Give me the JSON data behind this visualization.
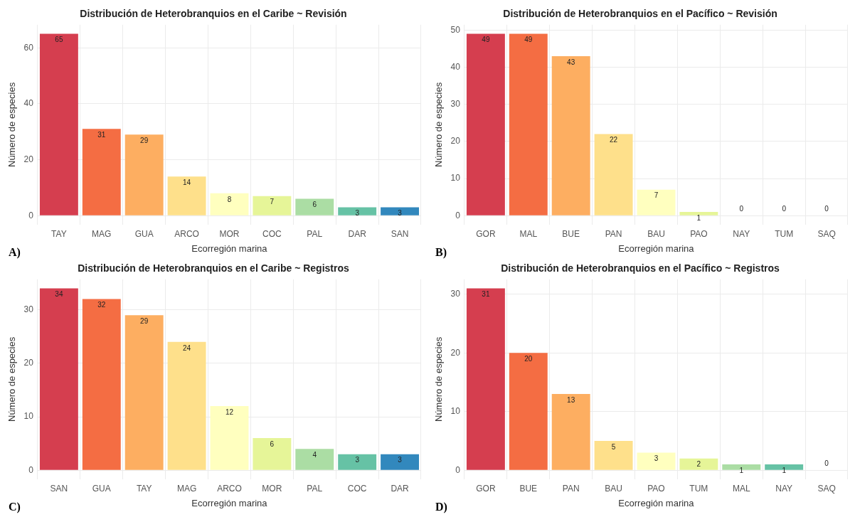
{
  "chart_data": [
    {
      "type": "bar",
      "title": "Distribución de Heterobranquios en el Caribe ~ Revisión",
      "xlabel": "Ecorregión marina",
      "ylabel": "Número de especies",
      "categories": [
        "TAY",
        "MAG",
        "GUA",
        "ARCO",
        "MOR",
        "COC",
        "PAL",
        "DAR",
        "SAN"
      ],
      "values": [
        65,
        31,
        29,
        14,
        8,
        7,
        6,
        3,
        3
      ],
      "colors": [
        "#d53e4f",
        "#f46d43",
        "#fdae61",
        "#fee08b",
        "#ffffbf",
        "#e6f598",
        "#abdda4",
        "#66c2a5",
        "#3288bd"
      ],
      "ylim": [
        -3.25,
        68.25
      ],
      "yticks": [
        0,
        20,
        40,
        60
      ],
      "grid": true,
      "data_labels": true,
      "annotations": [
        "A)"
      ]
    },
    {
      "type": "bar",
      "title": "Distribución de Heterobranquios en el Pacífico ~ Revisión",
      "xlabel": "Ecorregión marina",
      "ylabel": "Número de especies",
      "categories": [
        "GOR",
        "MAL",
        "BUE",
        "PAN",
        "BAU",
        "PAO",
        "NAY",
        "TUM",
        "SAQ"
      ],
      "values": [
        49,
        49,
        43,
        22,
        7,
        1,
        0,
        0,
        0
      ],
      "colors": [
        "#d53e4f",
        "#f46d43",
        "#fdae61",
        "#fee08b",
        "#ffffbf",
        "#e6f598",
        "#abdda4",
        "#66c2a5",
        "#3288bd"
      ],
      "ylim": [
        -2.45,
        51.45
      ],
      "yticks": [
        0,
        10,
        20,
        30,
        40,
        50
      ],
      "grid": true,
      "data_labels": true,
      "annotations": [
        "B)"
      ]
    },
    {
      "type": "bar",
      "title": "Distribución de Heterobranquios en el Caribe ~ Registros",
      "xlabel": "Ecorregión marina",
      "ylabel": "Número de especies",
      "categories": [
        "SAN",
        "GUA",
        "TAY",
        "MAG",
        "ARCO",
        "MOR",
        "PAL",
        "COC",
        "DAR"
      ],
      "values": [
        34,
        32,
        29,
        24,
        12,
        6,
        4,
        3,
        3
      ],
      "colors": [
        "#d53e4f",
        "#f46d43",
        "#fdae61",
        "#fee08b",
        "#ffffbf",
        "#e6f598",
        "#abdda4",
        "#66c2a5",
        "#3288bd"
      ],
      "ylim": [
        -1.7,
        35.7
      ],
      "yticks": [
        0,
        10,
        20,
        30
      ],
      "grid": true,
      "data_labels": true,
      "annotations": [
        "C)"
      ]
    },
    {
      "type": "bar",
      "title": "Distribución de Heterobranquios en el Pacífico ~ Registros",
      "xlabel": "Ecorregión marina",
      "ylabel": "Número de especies",
      "categories": [
        "GOR",
        "BUE",
        "PAN",
        "BAU",
        "PAO",
        "TUM",
        "MAL",
        "NAY",
        "SAQ"
      ],
      "values": [
        31,
        20,
        13,
        5,
        3,
        2,
        1,
        1,
        0
      ],
      "colors": [
        "#d53e4f",
        "#f46d43",
        "#fdae61",
        "#fee08b",
        "#ffffbf",
        "#e6f598",
        "#abdda4",
        "#66c2a5",
        "#3288bd"
      ],
      "ylim": [
        -1.55,
        32.55
      ],
      "yticks": [
        0,
        10,
        20,
        30
      ],
      "grid": true,
      "data_labels": true,
      "annotations": [
        "D)"
      ]
    }
  ]
}
